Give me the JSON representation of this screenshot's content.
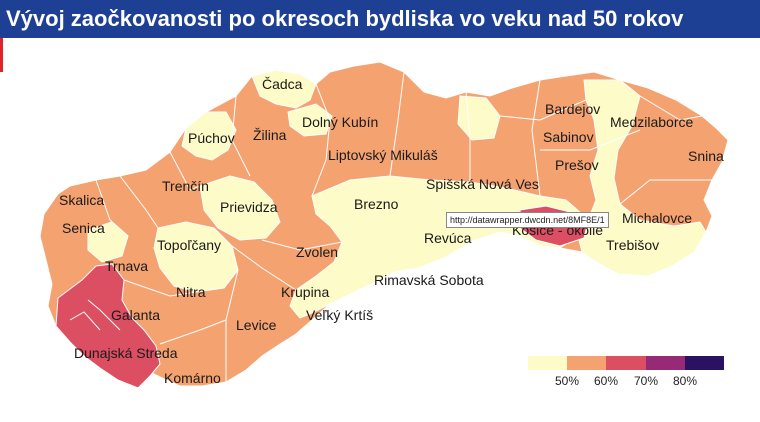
{
  "title": "Vývoj zaočkovanosti po okresoch bydliska vo veku nad 50 rokov",
  "tooltip_url": "http://datawrapper.dwcdn.net/8MF8E/1",
  "colors": {
    "c40_50": "#fdfbc7",
    "c50_60": "#f4a270",
    "c60_70": "#dc4e62",
    "c70_80": "#962a76",
    "c80_plus": "#2a1260",
    "title_bg": "#1d3f94",
    "accent": "#e0232b"
  },
  "districts": [
    {
      "name": "Čadca"
    },
    {
      "name": "Bardejov"
    },
    {
      "name": "Medzilaborce"
    },
    {
      "name": "Púchov"
    },
    {
      "name": "Žilina"
    },
    {
      "name": "Dolný Kubín"
    },
    {
      "name": "Sabinov"
    },
    {
      "name": "Liptovský Mikuláš"
    },
    {
      "name": "Prešov"
    },
    {
      "name": "Snina"
    },
    {
      "name": "Trenčín"
    },
    {
      "name": "Spišská Nová Ves"
    },
    {
      "name": "Skalica"
    },
    {
      "name": "Prievidza"
    },
    {
      "name": "Brezno"
    },
    {
      "name": "Michalovce"
    },
    {
      "name": "Senica"
    },
    {
      "name": "Košice - okolie"
    },
    {
      "name": "Topoľčany"
    },
    {
      "name": "Revúca"
    },
    {
      "name": "Trebišov"
    },
    {
      "name": "Zvolen"
    },
    {
      "name": "Trnava"
    },
    {
      "name": "Rimavská Sobota"
    },
    {
      "name": "Nitra"
    },
    {
      "name": "Krupina"
    },
    {
      "name": "Galanta"
    },
    {
      "name": "Veľký Krtíš"
    },
    {
      "name": "Levice"
    },
    {
      "name": "Dunajská Streda"
    },
    {
      "name": "Komárno"
    }
  ],
  "legend": {
    "labels": [
      "50%",
      "60%",
      "70%",
      "80%"
    ]
  }
}
